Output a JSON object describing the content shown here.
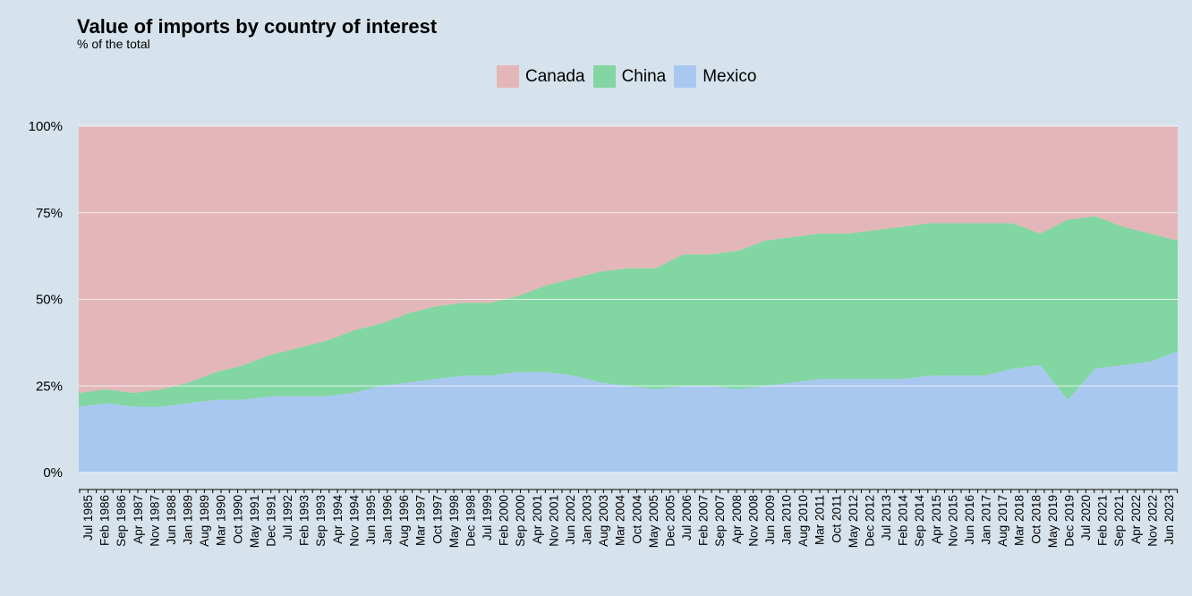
{
  "chart_data": {
    "type": "area",
    "title": "Value of imports by country of interest",
    "subtitle": "% of the total",
    "stacked": "percent",
    "legend_position": "top",
    "grid": "horizontal",
    "ylim": [
      0,
      100
    ],
    "y_ticks": [
      "0%",
      "25%",
      "50%",
      "75%",
      "100%"
    ],
    "x_tick_labels": [
      "Jul 1985",
      "Feb 1986",
      "Sep 1986",
      "Apr 1987",
      "Nov 1987",
      "Jun 1988",
      "Jan 1989",
      "Aug 1989",
      "Mar 1990",
      "Oct 1990",
      "May 1991",
      "Dec 1991",
      "Jul 1992",
      "Feb 1993",
      "Sep 1993",
      "Apr 1994",
      "Nov 1994",
      "Jun 1995",
      "Jan 1996",
      "Aug 1996",
      "Mar 1997",
      "Oct 1997",
      "May 1998",
      "Dec 1998",
      "Jul 1999",
      "Feb 2000",
      "Sep 2000",
      "Apr 2001",
      "Nov 2001",
      "Jun 2002",
      "Jan 2003",
      "Aug 2003",
      "Mar 2004",
      "Oct 2004",
      "May 2005",
      "Dec 2005",
      "Jul 2006",
      "Feb 2007",
      "Sep 2007",
      "Apr 2008",
      "Nov 2008",
      "Jun 2009",
      "Jan 2010",
      "Aug 2010",
      "Mar 2011",
      "Oct 2011",
      "May 2012",
      "Dec 2012",
      "Jul 2013",
      "Feb 2014",
      "Sep 2014",
      "Apr 2015",
      "Nov 2015",
      "Jun 2016",
      "Jan 2017",
      "Aug 2017",
      "Mar 2018",
      "Oct 2018",
      "May 2019",
      "Dec 2019",
      "Jul 2020",
      "Feb 2021",
      "Sep 2021",
      "Apr 2022",
      "Nov 2022",
      "Jun 2023"
    ],
    "x": [
      "1985",
      "1986",
      "1987",
      "1988",
      "1989",
      "1990",
      "1991",
      "1992",
      "1993",
      "1994",
      "1995",
      "1996",
      "1997",
      "1998",
      "1999",
      "2000",
      "2001",
      "2002",
      "2003",
      "2004",
      "2005",
      "2006",
      "2007",
      "2008",
      "2009",
      "2010",
      "2011",
      "2012",
      "2013",
      "2014",
      "2015",
      "2016",
      "2017",
      "2018",
      "2019",
      "Jan 2020",
      "Apr 2020",
      "Jul 2020",
      "2021",
      "2022",
      "2023"
    ],
    "series": [
      {
        "name": "Mexico",
        "color": "#a9c8f0",
        "values": [
          19,
          20,
          19,
          19,
          20,
          21,
          21,
          22,
          22,
          22,
          23,
          25,
          26,
          27,
          28,
          28,
          29,
          29,
          28,
          26,
          25,
          24,
          25,
          25,
          24,
          25,
          26,
          27,
          27,
          27,
          27,
          28,
          28,
          28,
          30,
          31,
          21,
          30,
          31,
          32,
          35
        ]
      },
      {
        "name": "China",
        "color": "#82d6a2",
        "values": [
          4,
          4,
          4,
          5,
          6,
          8,
          10,
          12,
          14,
          16,
          18,
          18,
          20,
          21,
          21,
          21,
          22,
          25,
          28,
          32,
          34,
          35,
          38,
          38,
          40,
          42,
          42,
          42,
          42,
          43,
          44,
          44,
          44,
          44,
          42,
          38,
          52,
          44,
          40,
          37,
          32
        ]
      },
      {
        "name": "Canada",
        "color": "#e3b7b9",
        "values": [
          77,
          76,
          77,
          76,
          74,
          71,
          69,
          66,
          64,
          62,
          59,
          57,
          54,
          52,
          51,
          51,
          49,
          46,
          44,
          42,
          41,
          41,
          37,
          37,
          36,
          33,
          32,
          31,
          31,
          30,
          29,
          28,
          28,
          28,
          28,
          31,
          27,
          26,
          29,
          31,
          33
        ]
      }
    ]
  }
}
